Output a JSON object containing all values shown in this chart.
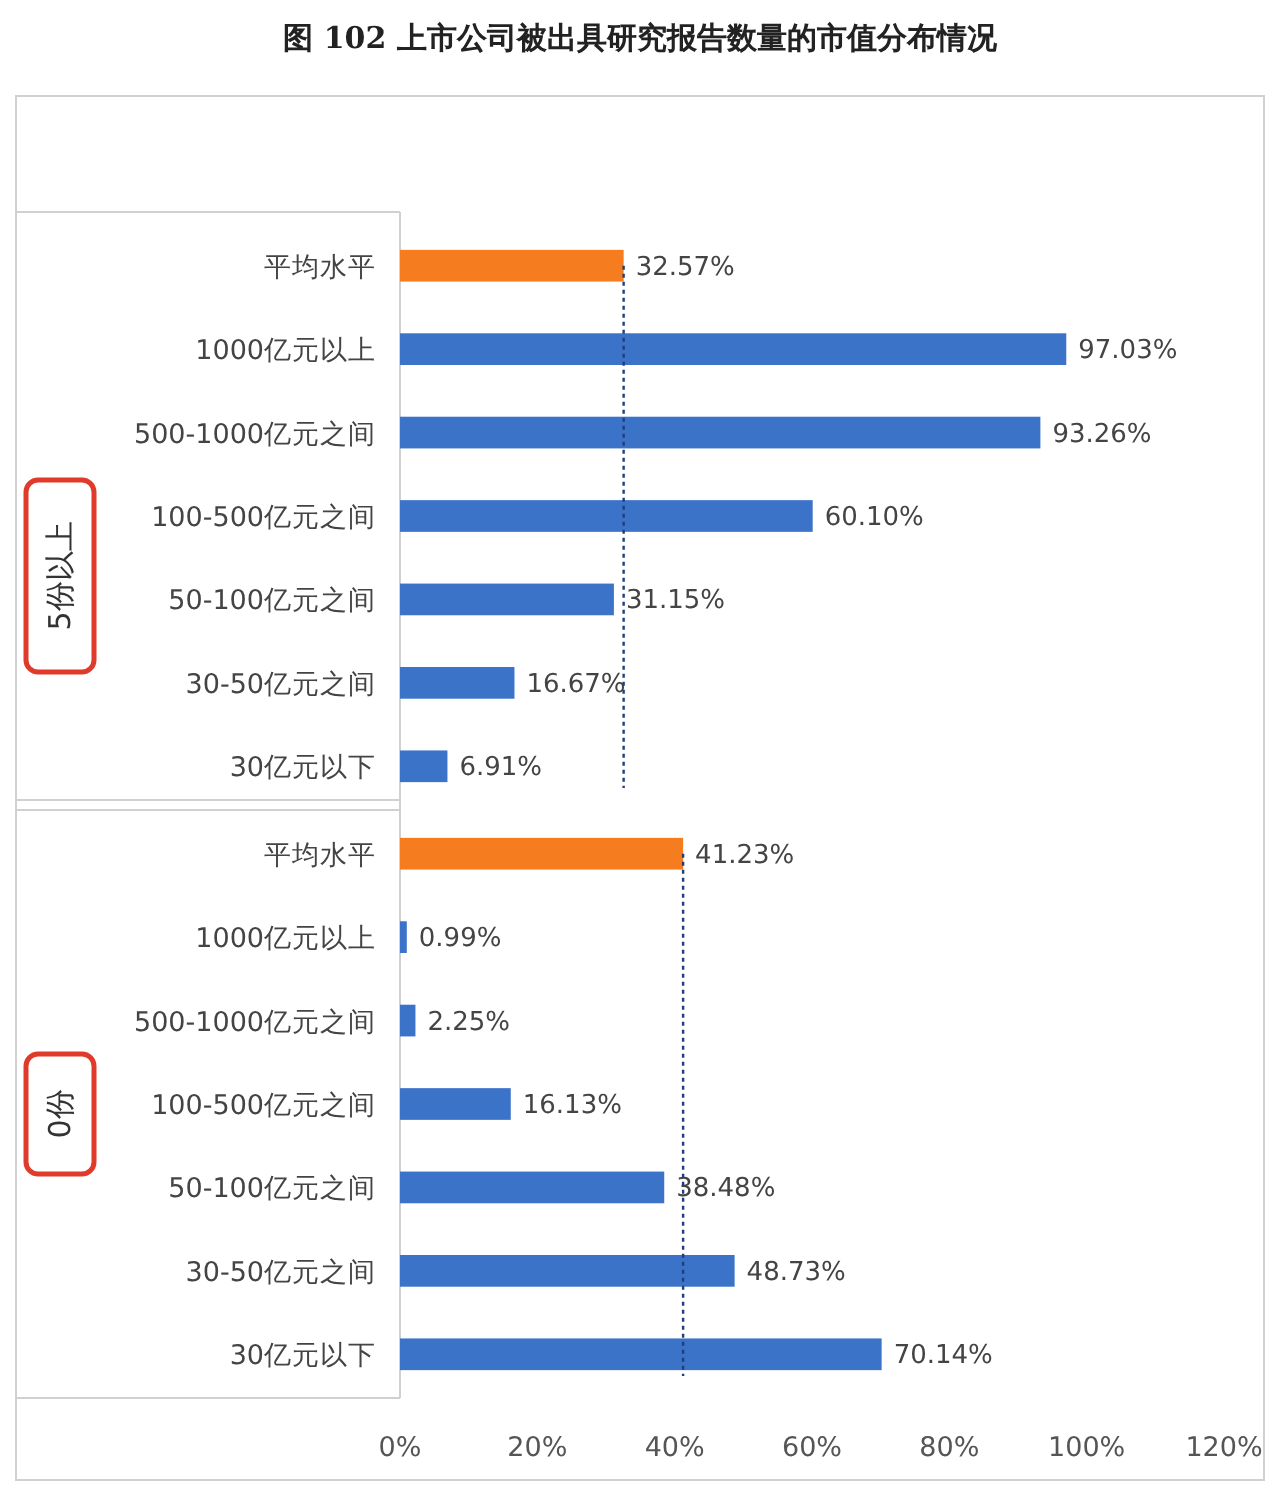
{
  "chart_data": [
    {
      "type": "bar",
      "orientation": "horizontal",
      "title": "图 102 上市公司被出具研究报告数量的市值分布情况",
      "ylabel": "5份以上",
      "tick_labels": "y",
      "categories": [
        "平均水平",
        "1000亿元以上",
        "500-1000亿元之间",
        "100-500亿元之间",
        "50-100亿元之间",
        "30-50亿元之间",
        "30亿元以下"
      ],
      "values": [
        32.57,
        97.03,
        93.26,
        60.1,
        31.15,
        16.67,
        6.91
      ],
      "colors": [
        "#f57c1f",
        "#3b73c8",
        "#3b73c8",
        "#3b73c8",
        "#3b73c8",
        "#3b73c8",
        "#3b73c8"
      ],
      "value_labels": [
        "32.57%",
        "97.03%",
        "93.26%",
        "60.10%",
        "31.15%",
        "16.67%",
        "6.91%"
      ],
      "ref_lines": [
        {
          "axis": "x",
          "value": 32.57,
          "color": "#1f3f7a",
          "line_style": "dotted"
        }
      ],
      "xlim": [
        0,
        120
      ]
    },
    {
      "type": "bar",
      "orientation": "horizontal",
      "ylabel": "0份",
      "categories": [
        "平均水平",
        "1000亿元以上",
        "500-1000亿元之间",
        "100-500亿元之间",
        "50-100亿元之间",
        "30-50亿元之间",
        "30亿元以下"
      ],
      "values": [
        41.23,
        0.99,
        2.25,
        16.13,
        38.48,
        48.73,
        70.14
      ],
      "colors": [
        "#f57c1f",
        "#3b73c8",
        "#3b73c8",
        "#3b73c8",
        "#3b73c8",
        "#3b73c8",
        "#3b73c8"
      ],
      "value_labels": [
        "41.23%",
        "0.99%",
        "2.25%",
        "16.13%",
        "38.48%",
        "48.73%",
        "70.14%"
      ],
      "ref_lines": [
        {
          "axis": "x",
          "value": 41.23,
          "color": "#1f3f7a",
          "line_style": "dotted"
        }
      ],
      "xlim": [
        0,
        120
      ],
      "xticks": [
        {
          "value": 0,
          "label": "0%"
        },
        {
          "value": 20,
          "label": "20%"
        },
        {
          "value": 40,
          "label": "40%"
        },
        {
          "value": 60,
          "label": "60%"
        },
        {
          "value": 80,
          "label": "80%"
        },
        {
          "value": 100,
          "label": "100%"
        },
        {
          "value": 120,
          "label": "120%"
        }
      ]
    }
  ]
}
